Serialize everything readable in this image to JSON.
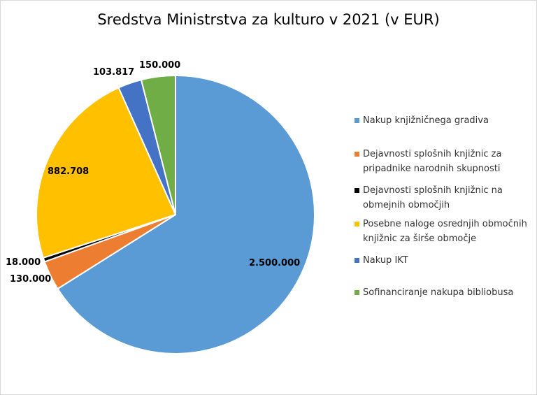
{
  "chart_data": {
    "type": "pie",
    "title": "Sredstva Ministrstva za kulturo v 2021 (v EUR)",
    "legend_position": "right",
    "slices": [
      {
        "label": "Nakup knjižničnega gradiva",
        "value": 2500000,
        "value_label": "2.500.000",
        "color": "#5b9bd5"
      },
      {
        "label": "Dejavnosti splošnih knjižnic za pripadnike narodnih skupnosti",
        "value": 130000,
        "value_label": "130.000",
        "color": "#ed7d31"
      },
      {
        "label": "Dejavnosti splošnih knjižnic na obmejnih območjih",
        "value": 18000,
        "value_label": "18.000",
        "color": "#000000"
      },
      {
        "label": "Posebne naloge osrednjih območnih knjižnic za širše območje",
        "value": 882708,
        "value_label": "882.708",
        "color": "#ffc000"
      },
      {
        "label": "Nakup IKT",
        "value": 103817,
        "value_label": "103.817",
        "color": "#4472c4"
      },
      {
        "label": "Sofinanciranje nakupa bibliobusa",
        "value": 150000,
        "value_label": "150.000",
        "color": "#70ad47"
      }
    ]
  }
}
